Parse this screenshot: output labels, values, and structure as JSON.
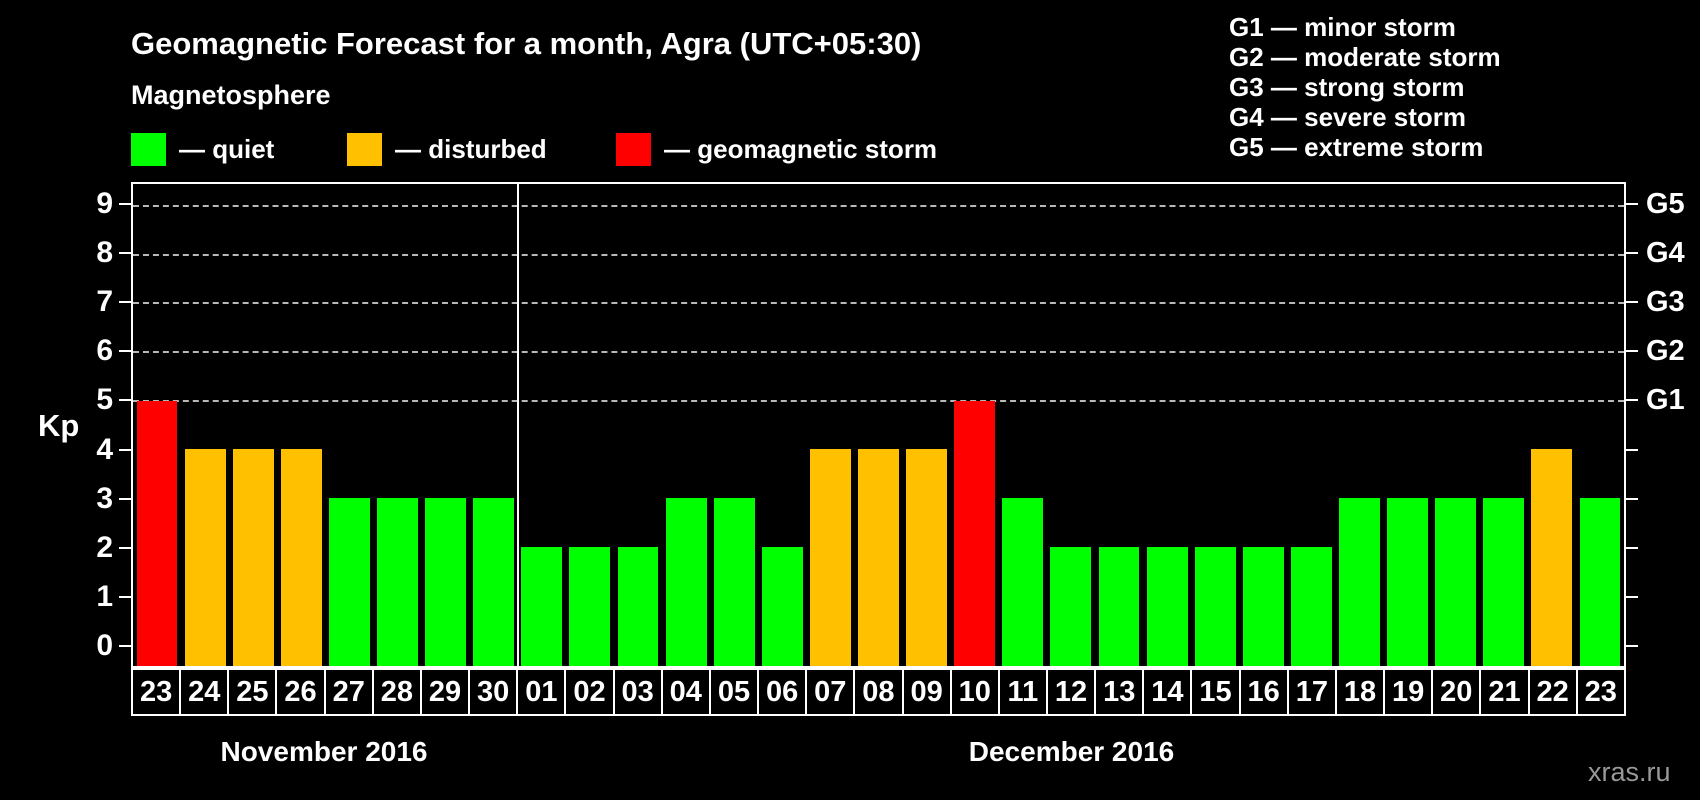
{
  "header": {
    "title": "Geomagnetic Forecast for a month, Agra (UTC+05:30)",
    "subtitle": "Magnetosphere"
  },
  "legend": {
    "items": [
      {
        "key": "quiet",
        "label": "— quiet",
        "color": "#00ff00"
      },
      {
        "key": "disturbed",
        "label": "— disturbed",
        "color": "#ffc000"
      },
      {
        "key": "storm",
        "label": "— geomagnetic storm",
        "color": "#ff0000"
      }
    ]
  },
  "g_legend": {
    "lines": [
      "G1 — minor storm",
      "G2 — moderate storm",
      "G3 — strong storm",
      "G4 — severe storm",
      "G5 — extreme storm"
    ]
  },
  "axes": {
    "kp_label": "Kp",
    "kp_ticks": [
      9,
      8,
      7,
      6,
      5,
      4,
      3,
      2,
      1,
      0
    ],
    "g_ticks": [
      {
        "label": "G5",
        "kp": 9
      },
      {
        "label": "G4",
        "kp": 8
      },
      {
        "label": "G3",
        "kp": 7
      },
      {
        "label": "G2",
        "kp": 6
      },
      {
        "label": "G1",
        "kp": 5
      }
    ]
  },
  "months": [
    {
      "label": "November 2016",
      "days_count": 8
    },
    {
      "label": "December 2016",
      "days_count": 23
    }
  ],
  "watermark": "xras.ru",
  "colors": {
    "quiet": "#00ff00",
    "disturbed": "#ffc000",
    "storm": "#ff0000",
    "background": "#000000",
    "grid": "#b8b8b8"
  },
  "chart_data": {
    "type": "bar",
    "title": "Geomagnetic Forecast for a month, Agra (UTC+05:30)",
    "subtitle": "Magnetosphere",
    "xlabel": "",
    "ylabel": "Kp",
    "ylim": [
      0,
      9
    ],
    "y_right_labels": [
      "G1",
      "G2",
      "G3",
      "G4",
      "G5"
    ],
    "grid": "horizontal dashed gridlines at Kp 5,6,7,8,9 only",
    "legend_position": "top-left",
    "gridlines_kp": [
      5,
      6,
      7,
      8,
      9
    ],
    "categories": [
      "23",
      "24",
      "25",
      "26",
      "27",
      "28",
      "29",
      "30",
      "01",
      "02",
      "03",
      "04",
      "05",
      "06",
      "07",
      "08",
      "09",
      "10",
      "11",
      "12",
      "13",
      "14",
      "15",
      "16",
      "17",
      "18",
      "19",
      "20",
      "21",
      "22",
      "23"
    ],
    "values": [
      5,
      4,
      4,
      4,
      3,
      3,
      3,
      3,
      2,
      2,
      2,
      3,
      3,
      2,
      4,
      4,
      4,
      5,
      3,
      2,
      2,
      2,
      2,
      2,
      2,
      3,
      3,
      3,
      3,
      4,
      3
    ],
    "statuses": [
      "storm",
      "disturbed",
      "disturbed",
      "disturbed",
      "quiet",
      "quiet",
      "quiet",
      "quiet",
      "quiet",
      "quiet",
      "quiet",
      "quiet",
      "quiet",
      "quiet",
      "disturbed",
      "disturbed",
      "disturbed",
      "storm",
      "quiet",
      "quiet",
      "quiet",
      "quiet",
      "quiet",
      "quiet",
      "quiet",
      "quiet",
      "quiet",
      "quiet",
      "quiet",
      "disturbed",
      "quiet"
    ],
    "month_split": {
      "November 2016": "days 23-30",
      "December 2016": "days 01-23"
    }
  }
}
